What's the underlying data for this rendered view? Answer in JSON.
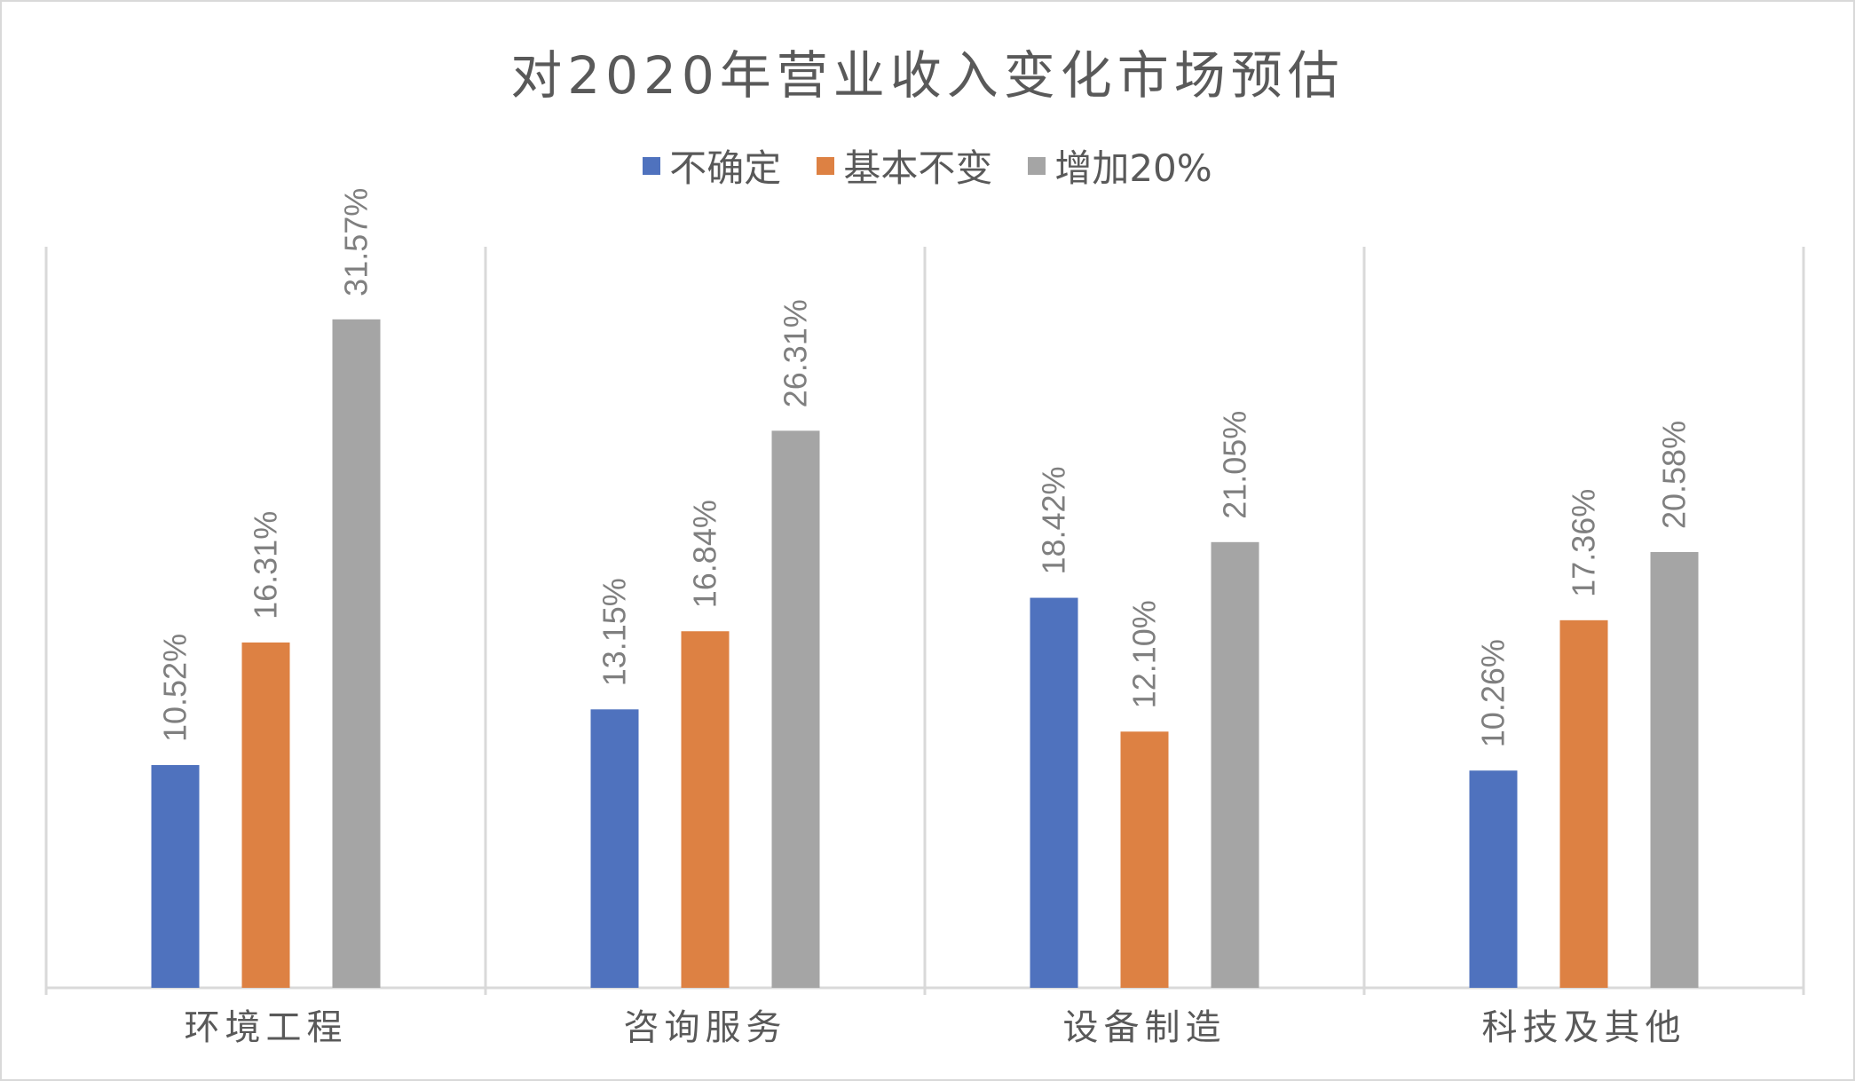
{
  "chart_data": {
    "type": "bar",
    "title": "对2020年营业收入变化市场预估",
    "categories": [
      "环境工程",
      "咨询服务",
      "设备制造",
      "科技及其他"
    ],
    "series": [
      {
        "name": "不确定",
        "color": "#4f72be",
        "values": [
          10.52,
          13.15,
          18.42,
          10.26
        ],
        "labels": [
          "10.52%",
          "13.15%",
          "18.42%",
          "10.26%"
        ]
      },
      {
        "name": "基本不变",
        "color": "#dd8143",
        "values": [
          16.31,
          16.84,
          12.1,
          17.36
        ],
        "labels": [
          "16.31%",
          "16.84%",
          "12.10%",
          "17.36%"
        ]
      },
      {
        "name": "增加20%",
        "color": "#a5a5a5",
        "values": [
          31.57,
          26.31,
          21.05,
          20.58
        ],
        "labels": [
          "31.57%",
          "26.31%",
          "21.05%",
          "20.58%"
        ]
      }
    ],
    "ylim": [
      0,
      35
    ],
    "legend": "top",
    "grid": false
  }
}
